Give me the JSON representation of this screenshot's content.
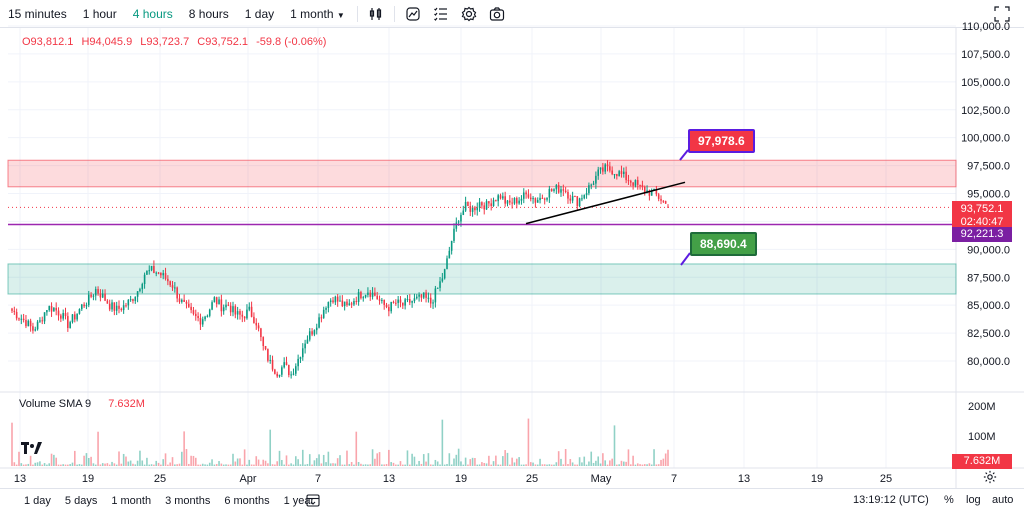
{
  "toolbar": {
    "timeframes": [
      "15 minutes",
      "1 hour",
      "4 hours",
      "8 hours",
      "1 day",
      "1 month"
    ],
    "active_timeframe": "4 hours",
    "icons": [
      "indicators-icon",
      "chart-type-icon",
      "templates-icon",
      "settings-icon",
      "snapshot-icon"
    ],
    "fullscreen_icon": "fullscreen-icon"
  },
  "legend": {
    "open": "O93,812.1",
    "high": "H94,045.9",
    "low": "L93,723.7",
    "close": "C93,752.1",
    "change": "-59.8 (-0.06%)"
  },
  "volume_legend": {
    "name": "Volume SMA 9",
    "value": "7.632M"
  },
  "price_axis": {
    "labels": [
      "110,000.0",
      "107,500.0",
      "105,000.0",
      "102,500.0",
      "100,000.0",
      "97,500.0",
      "95,000.0",
      "92,500.0",
      "90,000.0",
      "87,500.0",
      "85,000.0",
      "82,500.0",
      "80,000.0"
    ],
    "current_price": "93,752.1",
    "countdown": "02:40:47",
    "line_price": "92,221.3"
  },
  "volume_axis": {
    "labels": [
      "200M",
      "100M"
    ],
    "current": "7.632M"
  },
  "time_axis": [
    "13",
    "19",
    "25",
    "Apr",
    "7",
    "13",
    "19",
    "25",
    "May",
    "7",
    "13",
    "19",
    "25"
  ],
  "annotations": {
    "resistance_callout": "97,978.6",
    "support_callout": "88,690.4"
  },
  "colors": {
    "up": "#089981",
    "down": "#f23645",
    "resistance_zone": "#f23645",
    "support_zone": "#089981",
    "level_line": "#9c27b0"
  },
  "bottom_bar": {
    "ranges": [
      "1 day",
      "5 days",
      "1 month",
      "3 months",
      "6 months",
      "1 year"
    ],
    "clock": "13:19:12 (UTC)",
    "percent": "%",
    "log": "log",
    "auto": "auto"
  },
  "chart_data": {
    "type": "candlestick",
    "symbol_interval": "4 hours",
    "x_ticks": [
      "13",
      "19",
      "25",
      "Apr",
      "7",
      "13",
      "19",
      "25",
      "May",
      "7",
      "13",
      "19",
      "25"
    ],
    "y_ticks": [
      80000,
      82500,
      85000,
      87500,
      90000,
      92500,
      95000,
      97500,
      100000,
      102500,
      105000,
      107500,
      110000
    ],
    "ylim": [
      78000,
      111000
    ],
    "last_candle": {
      "open": 93812.1,
      "high": 94045.9,
      "low": 93723.7,
      "close": 93752.1
    },
    "resistance_zone": [
      95600,
      97978.6
    ],
    "support_zone": [
      86000,
      88690.4
    ],
    "horizontal_line": 92221.3,
    "trendline": {
      "from": 92300,
      "to": 96000
    },
    "close_path": [
      84500,
      84000,
      83500,
      82800,
      83500,
      84800,
      84700,
      84200,
      83300,
      84000,
      84900,
      85500,
      86400,
      85800,
      85000,
      84600,
      84900,
      85400,
      86300,
      87800,
      88100,
      87900,
      87400,
      86800,
      85500,
      84700,
      84000,
      83700,
      84300,
      85500,
      84900,
      85000,
      84200,
      84000,
      84500,
      83500,
      81200,
      79800,
      79000,
      79600,
      78800,
      80200,
      81800,
      82700,
      83800,
      85100,
      85700,
      85200,
      84800,
      85500,
      86000,
      86300,
      85900,
      85100,
      84800,
      85200,
      85000,
      85300,
      85500,
      85700,
      85200,
      86500,
      88000,
      90800,
      92900,
      93800,
      93600,
      94200,
      93900,
      94500,
      94800,
      94000,
      94300,
      94600,
      95000,
      94400,
      94700,
      95200,
      95400,
      95500,
      94700,
      94300,
      95000,
      95800,
      96800,
      97200,
      97100,
      96800,
      96400,
      96000,
      95500,
      95200,
      95000,
      94500,
      93800
    ],
    "volume_sma": "7.632M",
    "volume_ylim": [
      0,
      220
    ]
  }
}
